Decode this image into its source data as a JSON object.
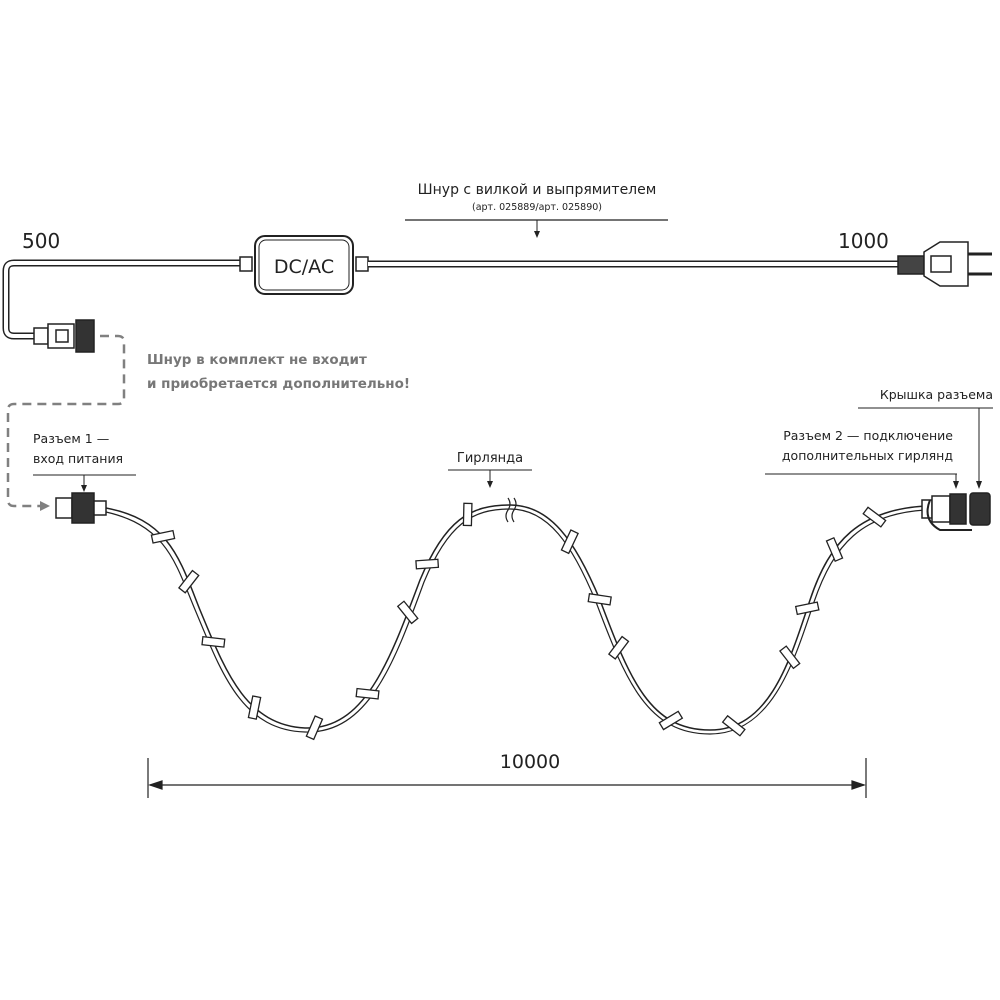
{
  "cord": {
    "title": "Шнур с вилкой и выпрямителем",
    "article": "(арт. 025889/арт. 025890)",
    "converter_label": "DC/AC",
    "length_left": "500",
    "length_right": "1000"
  },
  "note": {
    "line1": "Шнур в комплект не входит",
    "line2": "и приобретается дополнительно!"
  },
  "connector1": {
    "line1": "Разъем 1 —",
    "line2": "вход питания"
  },
  "garland_label": "Гирлянда",
  "cap_label": "Крышка разъема",
  "connector2": {
    "line1": "Разъем 2 — подключение",
    "line2": "дополнительных гирлянд"
  },
  "dimension": "10000",
  "colors": {
    "line": "#222222",
    "dashed": "#808080"
  }
}
